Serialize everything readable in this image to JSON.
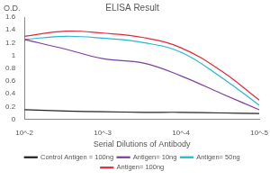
{
  "chart_data": {
    "type": "line",
    "title": "ELISA Result",
    "ylabel": "O.D.",
    "xlabel": "Serial Dilutions of Antibody",
    "log": "x",
    "grid": false,
    "legend": "bottom",
    "x": [
      0.01,
      0.003,
      0.001,
      0.0003,
      0.0001,
      3e-05,
      1e-05
    ],
    "xlim": [
      0.01,
      1e-05
    ],
    "xticks": [
      {
        "value": 0.01,
        "label": "10^-2"
      },
      {
        "value": 0.001,
        "label": "10^-3"
      },
      {
        "value": 0.0001,
        "label": "10^-4"
      },
      {
        "value": 1e-05,
        "label": "10^-5"
      }
    ],
    "ylim": [
      0,
      1.6
    ],
    "yticks": [
      0,
      0.2,
      0.4,
      0.6,
      0.8,
      1,
      1.2,
      1.4,
      1.6
    ],
    "series": [
      {
        "name": "Control Antigen = 100ng",
        "color": "#222222",
        "values": [
          0.15,
          0.13,
          0.12,
          0.11,
          0.11,
          0.1,
          0.09
        ]
      },
      {
        "name": "Antigen= 10ng",
        "color": "#7b3fa0",
        "values": [
          1.25,
          1.1,
          0.95,
          0.88,
          0.68,
          0.4,
          0.15
        ]
      },
      {
        "name": "Antigen= 50ng",
        "color": "#22b8d0",
        "values": [
          1.25,
          1.3,
          1.27,
          1.2,
          1.05,
          0.65,
          0.22
        ]
      },
      {
        "name": "Antigen= 100ng",
        "color": "#e0283c",
        "values": [
          1.3,
          1.38,
          1.35,
          1.28,
          1.12,
          0.75,
          0.3
        ]
      }
    ]
  }
}
